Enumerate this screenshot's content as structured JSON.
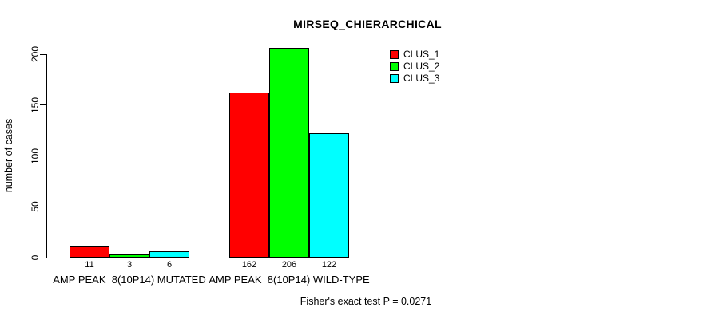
{
  "chart_data": {
    "type": "bar",
    "title": "MIRSEQ_CHIERARCHICAL",
    "ylabel": "number of cases",
    "xlabel": "",
    "categories": [
      "AMP PEAK  8(10P14) MUTATED",
      "AMP PEAK  8(10P14) WILD-TYPE"
    ],
    "series": [
      {
        "name": "CLUS_1",
        "color": "#ff0000",
        "values": [
          11,
          162
        ]
      },
      {
        "name": "CLUS_2",
        "color": "#00ff00",
        "values": [
          3,
          206
        ]
      },
      {
        "name": "CLUS_3",
        "color": "#00ffff",
        "values": [
          6,
          122
        ]
      }
    ],
    "ylim": [
      0,
      200
    ],
    "yticks": [
      0,
      50,
      100,
      150,
      200
    ],
    "grid": false,
    "legend_position": "top-right",
    "bar_border_color": "#000000",
    "annotation": "Fisher's exact test P = 0.0271"
  }
}
